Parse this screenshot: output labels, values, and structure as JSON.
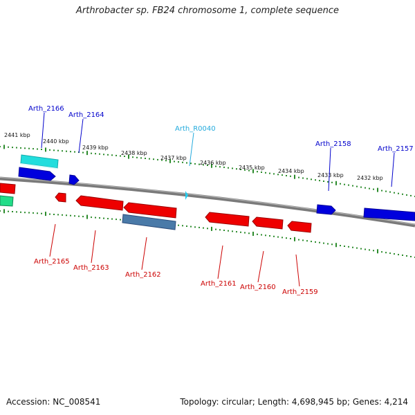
{
  "title": "Arthrobacter sp. FB24 chromosome 1, complete sequence",
  "accession_text": "Accession: NC_008541",
  "topology_text": "Topology: circular; Length: 4,698,945 bp; Genes: 4,214",
  "colors": {
    "backbone": "#7a7a7a",
    "tick": "#2a8a2a",
    "forward_gene": "#0000dd",
    "reverse_gene": "#ee0000",
    "rna_gene": "#22ccee",
    "forward_label": "#0000cc",
    "reverse_label": "#cc0000",
    "rna_label": "#22aadd",
    "highlight_forward": "#22dddd",
    "highlight_reverse": "#4a7aa8",
    "partial_green": "#22dd88"
  },
  "scale": {
    "unit": "kbp",
    "labels": [
      "2441 kbp",
      "2440 kbp",
      "2439 kbp",
      "2438 kbp",
      "2437 kbp",
      "2436 kbp",
      "2435 kbp",
      "2434 kbp",
      "2433 kbp",
      "2432 kbp"
    ]
  },
  "genes": [
    {
      "name": "Arth_2166",
      "strand": "forward",
      "color": "highlight_forward"
    },
    {
      "name": "Arth_2164",
      "strand": "forward",
      "color": "forward_gene"
    },
    {
      "name": "Arth_R0040",
      "strand": "forward",
      "color": "rna_gene"
    },
    {
      "name": "Arth_2158",
      "strand": "forward",
      "color": "forward_gene"
    },
    {
      "name": "Arth_2157",
      "strand": "forward",
      "color": "forward_gene"
    },
    {
      "name": "Arth_2165",
      "strand": "reverse",
      "color": "reverse_gene"
    },
    {
      "name": "Arth_2163",
      "strand": "reverse",
      "color": "reverse_gene"
    },
    {
      "name": "Arth_2162",
      "strand": "reverse",
      "color": "highlight_reverse"
    },
    {
      "name": "Arth_2161",
      "strand": "reverse",
      "color": "reverse_gene"
    },
    {
      "name": "Arth_2160",
      "strand": "reverse",
      "color": "reverse_gene"
    },
    {
      "name": "Arth_2159",
      "strand": "reverse",
      "color": "reverse_gene"
    }
  ]
}
